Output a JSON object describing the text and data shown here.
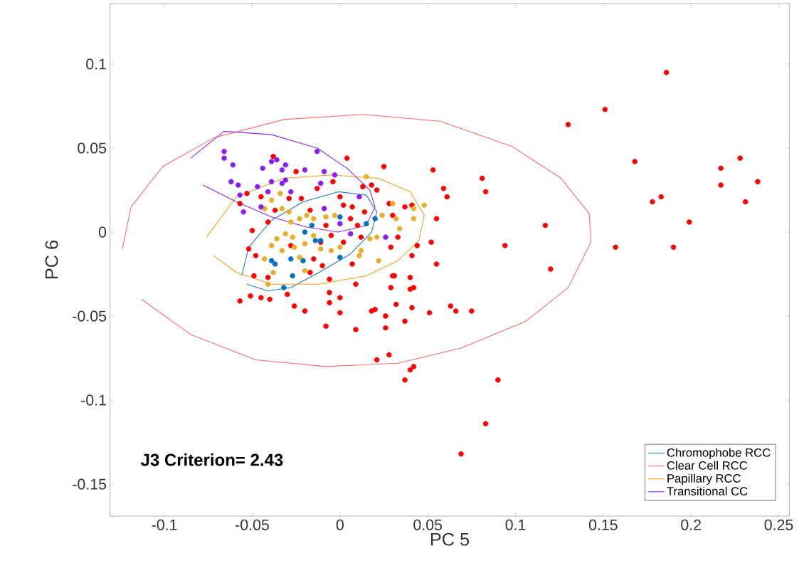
{
  "chart_data": {
    "type": "scatter",
    "xlabel": "PC 5",
    "ylabel": "PC 6",
    "xlim": [
      -0.131,
      0.256
    ],
    "ylim": [
      -0.169,
      0.136
    ],
    "xticks": [
      -0.1,
      -0.05,
      0,
      0.05,
      0.1,
      0.15,
      0.2,
      0.25
    ],
    "yticks": [
      -0.15,
      -0.1,
      -0.05,
      0,
      0.05,
      0.1
    ],
    "grid": false,
    "legend": "bottom right",
    "annotations": [
      "J3 Criterion= 2.43"
    ],
    "series": [
      {
        "name": "Chromophobe RCC",
        "type": "line",
        "marker": "none",
        "color": "#1f77c8",
        "x": [
          -0.056,
          -0.052,
          -0.039,
          -0.021,
          -0.001,
          0.015,
          0.021,
          0.018,
          0.006,
          -0.012,
          -0.028,
          -0.041,
          -0.053
        ],
        "values": [
          -0.026,
          -0.009,
          0.007,
          0.018,
          0.024,
          0.022,
          0.012,
          0.0,
          -0.013,
          -0.024,
          -0.033,
          -0.035,
          -0.031
        ]
      },
      {
        "name": "Clear Cell RCC",
        "type": "line",
        "marker": "none",
        "color": "#ff6b6b",
        "x": [
          -0.124,
          -0.119,
          -0.101,
          -0.072,
          -0.032,
          0.013,
          0.057,
          0.098,
          0.126,
          0.142,
          0.143,
          0.13,
          0.106,
          0.069,
          0.033,
          -0.008,
          -0.048,
          -0.085,
          -0.113
        ],
        "values": [
          -0.01,
          0.015,
          0.039,
          0.056,
          0.067,
          0.07,
          0.066,
          0.051,
          0.032,
          0.011,
          -0.006,
          -0.033,
          -0.053,
          -0.069,
          -0.078,
          -0.08,
          -0.076,
          -0.061,
          -0.04
        ]
      },
      {
        "name": "Papillary RCC",
        "type": "line",
        "marker": "none",
        "color": "#f5a01a",
        "x": [
          -0.076,
          -0.059,
          -0.032,
          -0.005,
          0.022,
          0.04,
          0.048,
          0.045,
          0.033,
          0.015,
          -0.012,
          -0.039,
          -0.059,
          -0.072
        ],
        "values": [
          -0.003,
          0.021,
          0.032,
          0.034,
          0.032,
          0.024,
          0.01,
          -0.005,
          -0.017,
          -0.026,
          -0.031,
          -0.031,
          -0.024,
          -0.014
        ]
      },
      {
        "name": "Transitional CC",
        "type": "line",
        "marker": "none",
        "color": "#8a2be2",
        "x": [
          -0.085,
          -0.066,
          -0.039,
          -0.013,
          0.004,
          0.017,
          0.02,
          0.015,
          -0.001,
          -0.019,
          -0.039,
          -0.059,
          -0.078
        ],
        "values": [
          0.044,
          0.06,
          0.058,
          0.05,
          0.038,
          0.025,
          0.015,
          0.004,
          0.0,
          0.003,
          0.009,
          0.018,
          0.028
        ]
      },
      {
        "marker": "circle",
        "color": "#ff0000",
        "x": [
          0.186,
          0.151,
          0.13,
          0.168,
          0.228,
          0.217,
          0.217,
          0.238,
          0.231,
          0.183,
          0.178,
          0.199,
          0.19,
          0.157,
          0.117,
          0.094,
          0.12,
          0.081,
          0.083,
          0.053,
          0.059,
          0.061,
          0.055,
          0.052,
          0.055,
          -0.057,
          -0.051,
          -0.045,
          -0.04,
          -0.026,
          -0.02,
          -0.006,
          0.0,
          0.0,
          -0.008,
          0.009,
          0.018,
          0.02,
          0.026,
          0.026,
          0.032,
          0.037,
          0.041,
          0.051,
          0.063,
          0.066,
          0.075,
          0.021,
          0.028,
          0.042,
          0.04,
          0.037,
          0.09,
          0.083,
          0.069,
          0.031,
          0.04,
          0.04,
          0.042,
          0.029,
          0.009,
          -0.006,
          -0.03,
          -0.038,
          0.004,
          0.025,
          -0.025,
          -0.013,
          -0.004,
          0.013,
          0.018,
          0.021,
          -0.053,
          -0.045,
          -0.029,
          -0.022,
          0.0,
          -0.057,
          -0.037,
          -0.017,
          0.002,
          0.007,
          0.014,
          0.028,
          0.037,
          0.041,
          -0.041,
          -0.008,
          0.006,
          0.01,
          0.03,
          -0.05,
          -0.005,
          0.002,
          0.012,
          0.033,
          -0.052,
          -0.048,
          -0.028,
          -0.011,
          0.029,
          0.044,
          0.007,
          0.041,
          -0.015,
          -0.049,
          -0.041,
          -0.017,
          -0.01,
          -0.006,
          0.03
        ],
        "values": [
          0.095,
          0.073,
          0.064,
          0.042,
          0.044,
          0.038,
          0.028,
          0.03,
          0.018,
          0.021,
          0.018,
          0.006,
          -0.009,
          -0.009,
          0.004,
          -0.008,
          -0.022,
          0.032,
          0.024,
          0.037,
          0.026,
          0.021,
          0.008,
          -0.006,
          -0.019,
          -0.041,
          -0.038,
          -0.039,
          -0.04,
          -0.044,
          -0.047,
          -0.042,
          -0.039,
          -0.048,
          -0.056,
          -0.058,
          -0.047,
          -0.046,
          -0.05,
          -0.057,
          -0.043,
          -0.053,
          -0.045,
          -0.048,
          -0.044,
          -0.047,
          -0.047,
          -0.076,
          -0.073,
          -0.08,
          -0.082,
          -0.088,
          -0.088,
          -0.114,
          -0.132,
          -0.026,
          -0.027,
          -0.034,
          -0.033,
          -0.033,
          -0.031,
          -0.036,
          -0.037,
          0.045,
          0.044,
          0.039,
          0.036,
          0.026,
          0.03,
          0.027,
          0.028,
          0.025,
          0.023,
          0.021,
          0.02,
          0.02,
          0.021,
          0.017,
          0.013,
          0.013,
          0.016,
          0.015,
          0.012,
          0.017,
          0.015,
          0.016,
          0.006,
          0.004,
          0.008,
          0.004,
          0.01,
          0.001,
          -0.002,
          -0.006,
          -0.003,
          -0.003,
          -0.01,
          -0.014,
          -0.008,
          -0.006,
          -0.009,
          -0.008,
          -0.019,
          -0.014,
          -0.016,
          -0.026,
          -0.027,
          -0.024,
          -0.02,
          -0.028,
          -0.026
        ]
      },
      {
        "marker": "circle",
        "color": "#0072bd",
        "x": [
          0.0,
          0.015,
          0.02,
          -0.016,
          -0.02,
          -0.014,
          -0.011,
          0.0,
          -0.028,
          -0.021,
          -0.039,
          -0.037,
          -0.027,
          -0.032
        ],
        "values": [
          0.009,
          0.005,
          0.008,
          0.004,
          0.0,
          -0.005,
          -0.005,
          -0.015,
          -0.016,
          -0.017,
          -0.017,
          -0.019,
          -0.026,
          -0.033
        ]
      },
      {
        "marker": "circle",
        "color": "#e6b02c",
        "x": [
          0.015,
          0.048,
          0.042,
          0.042,
          0.034,
          0.03,
          0.032,
          0.024,
          0.021,
          0.017,
          0.012,
          0.011,
          0.022,
          0.0,
          -0.005,
          -0.011,
          -0.02,
          -0.015,
          -0.023,
          -0.019,
          -0.015,
          -0.008,
          -0.003,
          -0.034,
          -0.039,
          -0.033,
          -0.043,
          -0.029,
          -0.028,
          -0.031,
          -0.036,
          -0.027,
          -0.039,
          -0.033,
          -0.026,
          -0.043,
          -0.023,
          -0.038,
          -0.02,
          -0.041
        ],
        "values": [
          0.033,
          0.016,
          0.014,
          0.008,
          0.002,
          0.017,
          0.008,
          0.01,
          -0.003,
          -0.004,
          -0.011,
          -0.014,
          -0.017,
          -0.009,
          -0.011,
          -0.01,
          -0.007,
          -0.002,
          0.008,
          0.01,
          0.008,
          0.009,
          0.01,
          0.023,
          0.019,
          0.014,
          0.014,
          0.012,
          0.006,
          -0.001,
          -0.004,
          -0.003,
          -0.008,
          -0.011,
          -0.009,
          -0.016,
          -0.015,
          -0.024,
          -0.023,
          -0.031
        ]
      },
      {
        "marker": "circle",
        "color": "#8a1ef0",
        "x": [
          -0.066,
          -0.066,
          -0.061,
          -0.062,
          -0.058,
          -0.057,
          -0.055,
          -0.045,
          -0.047,
          -0.041,
          -0.044,
          -0.039,
          -0.036,
          -0.031,
          -0.033,
          -0.039,
          -0.033,
          -0.031,
          -0.02,
          -0.009,
          -0.003,
          -0.013,
          -0.011,
          -0.028,
          -0.009,
          0.011,
          0.0,
          0.006,
          0.026
        ],
        "values": [
          0.048,
          0.044,
          0.04,
          0.03,
          0.028,
          0.022,
          0.012,
          0.015,
          0.027,
          0.024,
          0.038,
          0.042,
          0.043,
          0.04,
          0.037,
          0.03,
          0.029,
          0.031,
          0.037,
          0.036,
          0.034,
          0.048,
          0.029,
          0.024,
          0.014,
          0.021,
          0.005,
          -0.001,
          -0.003
        ]
      }
    ]
  }
}
